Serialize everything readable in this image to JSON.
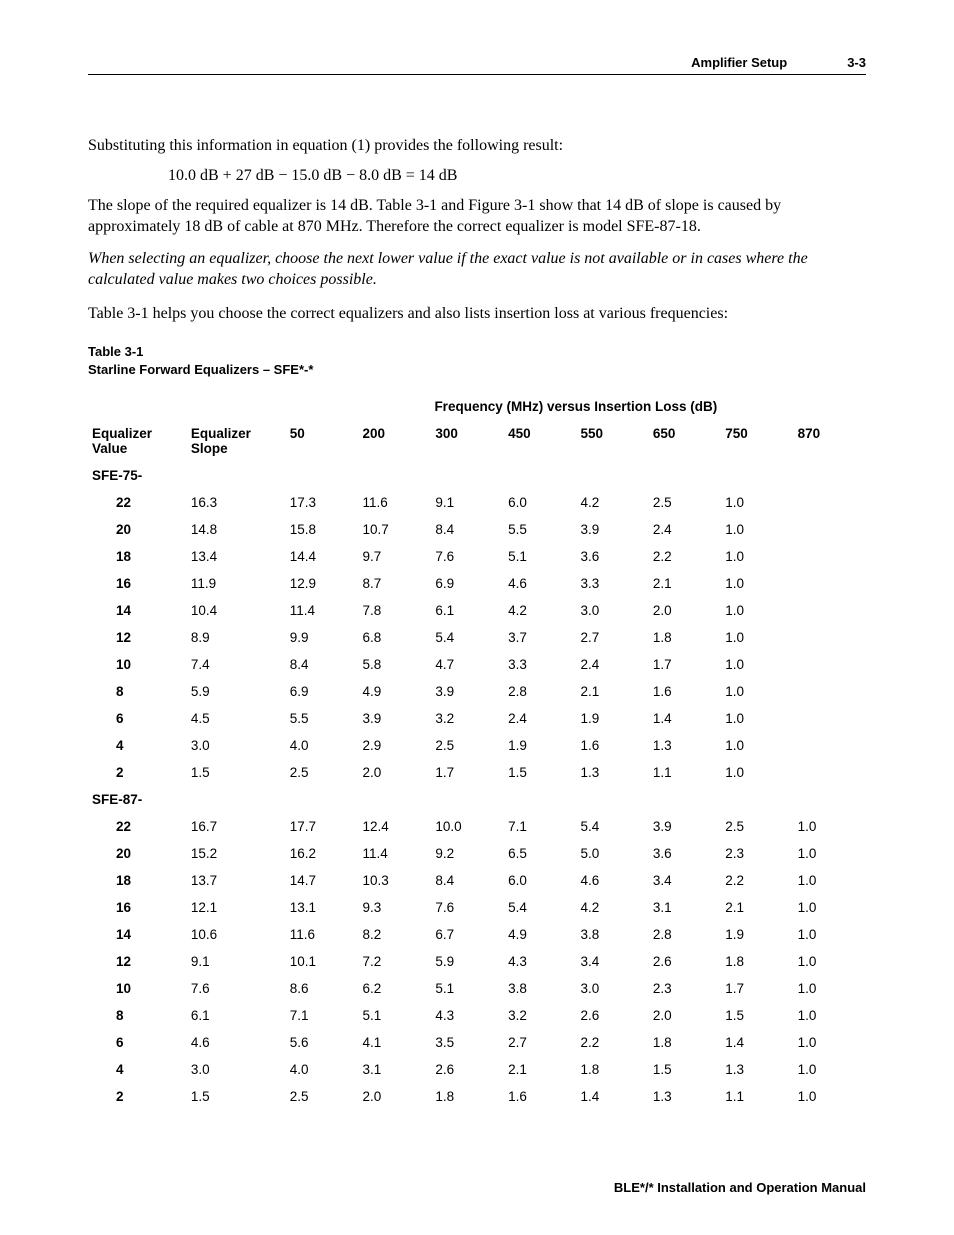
{
  "header": {
    "title": "Amplifier Setup",
    "page": "3-3"
  },
  "paragraphs": {
    "p1": "Substituting this information in equation (1) provides the following result:",
    "eq": "10.0 dB + 27 dB − 15.0 dB − 8.0 dB = 14 dB",
    "p2": "The slope of the required equalizer is 14 dB. Table 3-1 and Figure 3-1 show that 14 dB of slope is caused by approximately 18 dB of cable at 870 MHz. Therefore the correct equalizer is model SFE-87-18.",
    "note": "When selecting an equalizer, choose the next lower value if the exact value is not available or in cases where the calculated value makes two choices possible.",
    "p3": "Table 3-1 helps you choose the correct equalizers and also lists insertion loss at various frequencies:"
  },
  "table": {
    "caption_line1": "Table 3-1",
    "caption_line2": "Starline Forward Equalizers – SFE*-*",
    "super_header": "Frequency (MHz) versus Insertion Loss (dB)",
    "col_headers": {
      "eq_value": "Equalizer\nValue",
      "eq_slope": "Equalizer\nSlope",
      "f50": "50",
      "f200": "200",
      "f300": "300",
      "f450": "450",
      "f550": "550",
      "f650": "650",
      "f750": "750",
      "f870": "870"
    },
    "groups": [
      {
        "name": "SFE-75-",
        "rows": [
          {
            "v": "22",
            "slope": "16.3",
            "d": [
              "17.3",
              "11.6",
              "9.1",
              "6.0",
              "4.2",
              "2.5",
              "1.0",
              ""
            ]
          },
          {
            "v": "20",
            "slope": "14.8",
            "d": [
              "15.8",
              "10.7",
              "8.4",
              "5.5",
              "3.9",
              "2.4",
              "1.0",
              ""
            ]
          },
          {
            "v": "18",
            "slope": "13.4",
            "d": [
              "14.4",
              "9.7",
              "7.6",
              "5.1",
              "3.6",
              "2.2",
              "1.0",
              ""
            ]
          },
          {
            "v": "16",
            "slope": "11.9",
            "d": [
              "12.9",
              "8.7",
              "6.9",
              "4.6",
              "3.3",
              "2.1",
              "1.0",
              ""
            ]
          },
          {
            "v": "14",
            "slope": "10.4",
            "d": [
              "11.4",
              "7.8",
              "6.1",
              "4.2",
              "3.0",
              "2.0",
              "1.0",
              ""
            ]
          },
          {
            "v": "12",
            "slope": "8.9",
            "d": [
              "9.9",
              "6.8",
              "5.4",
              "3.7",
              "2.7",
              "1.8",
              "1.0",
              ""
            ]
          },
          {
            "v": "10",
            "slope": "7.4",
            "d": [
              "8.4",
              "5.8",
              "4.7",
              "3.3",
              "2.4",
              "1.7",
              "1.0",
              ""
            ]
          },
          {
            "v": "8",
            "slope": "5.9",
            "d": [
              "6.9",
              "4.9",
              "3.9",
              "2.8",
              "2.1",
              "1.6",
              "1.0",
              ""
            ]
          },
          {
            "v": "6",
            "slope": "4.5",
            "d": [
              "5.5",
              "3.9",
              "3.2",
              "2.4",
              "1.9",
              "1.4",
              "1.0",
              ""
            ]
          },
          {
            "v": "4",
            "slope": "3.0",
            "d": [
              "4.0",
              "2.9",
              "2.5",
              "1.9",
              "1.6",
              "1.3",
              "1.0",
              ""
            ]
          },
          {
            "v": "2",
            "slope": "1.5",
            "d": [
              "2.5",
              "2.0",
              "1.7",
              "1.5",
              "1.3",
              "1.1",
              "1.0",
              ""
            ]
          }
        ]
      },
      {
        "name": "SFE-87-",
        "rows": [
          {
            "v": "22",
            "slope": "16.7",
            "d": [
              "17.7",
              "12.4",
              "10.0",
              "7.1",
              "5.4",
              "3.9",
              "2.5",
              "1.0"
            ]
          },
          {
            "v": "20",
            "slope": "15.2",
            "d": [
              "16.2",
              "11.4",
              "9.2",
              "6.5",
              "5.0",
              "3.6",
              "2.3",
              "1.0"
            ]
          },
          {
            "v": "18",
            "slope": "13.7",
            "d": [
              "14.7",
              "10.3",
              "8.4",
              "6.0",
              "4.6",
              "3.4",
              "2.2",
              "1.0"
            ]
          },
          {
            "v": "16",
            "slope": "12.1",
            "d": [
              "13.1",
              "9.3",
              "7.6",
              "5.4",
              "4.2",
              "3.1",
              "2.1",
              "1.0"
            ]
          },
          {
            "v": "14",
            "slope": "10.6",
            "d": [
              "11.6",
              "8.2",
              "6.7",
              "4.9",
              "3.8",
              "2.8",
              "1.9",
              "1.0"
            ]
          },
          {
            "v": "12",
            "slope": "9.1",
            "d": [
              "10.1",
              "7.2",
              "5.9",
              "4.3",
              "3.4",
              "2.6",
              "1.8",
              "1.0"
            ]
          },
          {
            "v": "10",
            "slope": "7.6",
            "d": [
              "8.6",
              "6.2",
              "5.1",
              "3.8",
              "3.0",
              "2.3",
              "1.7",
              "1.0"
            ]
          },
          {
            "v": "8",
            "slope": "6.1",
            "d": [
              "7.1",
              "5.1",
              "4.3",
              "3.2",
              "2.6",
              "2.0",
              "1.5",
              "1.0"
            ]
          },
          {
            "v": "6",
            "slope": "4.6",
            "d": [
              "5.6",
              "4.1",
              "3.5",
              "2.7",
              "2.2",
              "1.8",
              "1.4",
              "1.0"
            ]
          },
          {
            "v": "4",
            "slope": "3.0",
            "d": [
              "4.0",
              "3.1",
              "2.6",
              "2.1",
              "1.8",
              "1.5",
              "1.3",
              "1.0"
            ]
          },
          {
            "v": "2",
            "slope": "1.5",
            "d": [
              "2.5",
              "2.0",
              "1.8",
              "1.6",
              "1.4",
              "1.3",
              "1.1",
              "1.0"
            ]
          }
        ]
      }
    ]
  },
  "footer": "BLE*/* Installation and Operation Manual"
}
